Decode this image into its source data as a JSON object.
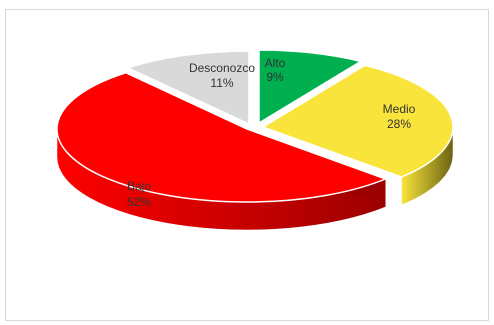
{
  "chart_data": {
    "type": "pie",
    "style": "3d-exploded",
    "title": "",
    "slices": [
      {
        "label": "Alto",
        "value": 9,
        "display": "9%",
        "color": "#00b050",
        "side": "#006b2f"
      },
      {
        "label": "Medio",
        "value": 28,
        "display": "28%",
        "color": "#f9e43b",
        "side": "#6b6312"
      },
      {
        "label": "Bajo",
        "value": 52,
        "display": "52%",
        "color": "#ff0000",
        "side": "#9c0000"
      },
      {
        "label": "Desconozco",
        "value": 11,
        "display": "11%",
        "color": "#d9d9d9",
        "side": "#8c8c8c"
      }
    ],
    "legend": "none",
    "labels_inside": true
  }
}
